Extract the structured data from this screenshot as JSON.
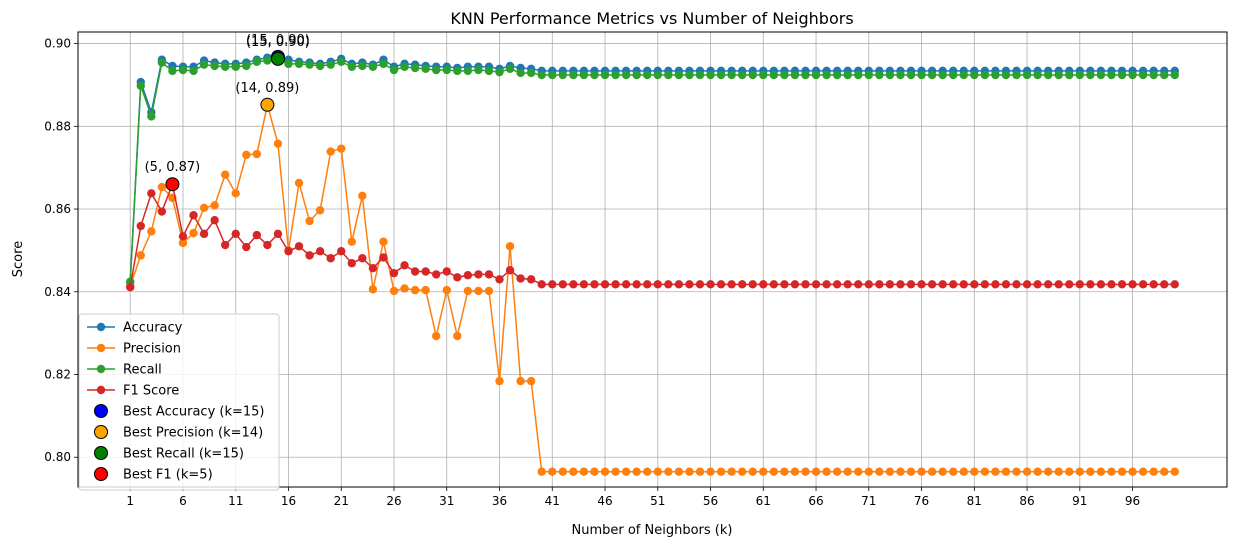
{
  "chart_data": {
    "type": "line",
    "title": "KNN Performance Metrics vs Number of Neighbors",
    "xlabel": "Number of Neighbors (k)",
    "ylabel": "Score",
    "xlim": [
      -3.95,
      104.95
    ],
    "ylim": [
      0.7928,
      0.9028
    ],
    "xticks": [
      1,
      6,
      11,
      16,
      21,
      26,
      31,
      36,
      41,
      46,
      51,
      56,
      61,
      66,
      71,
      76,
      81,
      86,
      91,
      96
    ],
    "yticks": [
      0.8,
      0.82,
      0.84,
      0.86,
      0.88,
      0.9
    ],
    "ytick_labels": [
      "0.80",
      "0.82",
      "0.84",
      "0.86",
      "0.88",
      "0.90"
    ],
    "grid": true,
    "legend_position": "lower left",
    "x": [
      1,
      2,
      3,
      4,
      5,
      6,
      7,
      8,
      9,
      10,
      11,
      12,
      13,
      14,
      15,
      16,
      17,
      18,
      19,
      20,
      21,
      22,
      23,
      24,
      25,
      26,
      27,
      28,
      29,
      30,
      31,
      32,
      33,
      34,
      35,
      36,
      37,
      38,
      39,
      40,
      41,
      42,
      43,
      44,
      45,
      46,
      47,
      48,
      49,
      50,
      51,
      52,
      53,
      54,
      55,
      56,
      57,
      58,
      59,
      60,
      61,
      62,
      63,
      64,
      65,
      66,
      67,
      68,
      69,
      70,
      71,
      72,
      73,
      74,
      75,
      76,
      77,
      78,
      79,
      80,
      81,
      82,
      83,
      84,
      85,
      86,
      87,
      88,
      89,
      90,
      91,
      92,
      93,
      94,
      95,
      96,
      97,
      98,
      99,
      100
    ],
    "series": [
      {
        "name": "Accuracy",
        "color": "#1f77b4",
        "values": [
          0.8424,
          0.8907,
          0.8834,
          0.8961,
          0.8946,
          0.8944,
          0.8944,
          0.8959,
          0.8954,
          0.8951,
          0.8951,
          0.8954,
          0.8961,
          0.8966,
          0.8968,
          0.8961,
          0.8956,
          0.8954,
          0.8951,
          0.8956,
          0.8963,
          0.8951,
          0.8954,
          0.8949,
          0.8961,
          0.8944,
          0.8951,
          0.8949,
          0.8946,
          0.8944,
          0.8944,
          0.8941,
          0.8944,
          0.8944,
          0.8944,
          0.8939,
          0.8946,
          0.8941,
          0.8939,
          0.8934,
          0.8934,
          0.8934,
          0.8934,
          0.8934,
          0.8934,
          0.8934,
          0.8934,
          0.8934,
          0.8934,
          0.8934,
          0.8934,
          0.8934,
          0.8934,
          0.8934,
          0.8934,
          0.8934,
          0.8934,
          0.8934,
          0.8934,
          0.8934,
          0.8934,
          0.8934,
          0.8934,
          0.8934,
          0.8934,
          0.8934,
          0.8934,
          0.8934,
          0.8934,
          0.8934,
          0.8934,
          0.8934,
          0.8934,
          0.8934,
          0.8934,
          0.8934,
          0.8934,
          0.8934,
          0.8934,
          0.8934,
          0.8934,
          0.8934,
          0.8934,
          0.8934,
          0.8934,
          0.8934,
          0.8934,
          0.8934,
          0.8934,
          0.8934,
          0.8934,
          0.8934,
          0.8934,
          0.8934,
          0.8934,
          0.8934,
          0.8934,
          0.8934,
          0.8934,
          0.8934
        ]
      },
      {
        "name": "Precision",
        "color": "#ff7f0e",
        "values": [
          0.8414,
          0.8488,
          0.8546,
          0.8653,
          0.8627,
          0.8518,
          0.8542,
          0.8603,
          0.8609,
          0.8683,
          0.8638,
          0.8731,
          0.8733,
          0.8852,
          0.8758,
          0.85,
          0.8663,
          0.8571,
          0.8597,
          0.8739,
          0.8746,
          0.8521,
          0.8632,
          0.8406,
          0.8521,
          0.8402,
          0.8408,
          0.8404,
          0.8404,
          0.8293,
          0.8404,
          0.8293,
          0.8402,
          0.8402,
          0.8402,
          0.8184,
          0.851,
          0.8184,
          0.8184,
          0.7965,
          0.7965,
          0.7965,
          0.7965,
          0.7965,
          0.7965,
          0.7965,
          0.7965,
          0.7965,
          0.7965,
          0.7965,
          0.7965,
          0.7965,
          0.7965,
          0.7965,
          0.7965,
          0.7965,
          0.7965,
          0.7965,
          0.7965,
          0.7965,
          0.7965,
          0.7965,
          0.7965,
          0.7965,
          0.7965,
          0.7965,
          0.7965,
          0.7965,
          0.7965,
          0.7965,
          0.7965,
          0.7965,
          0.7965,
          0.7965,
          0.7965,
          0.7965,
          0.7965,
          0.7965,
          0.7965,
          0.7965,
          0.7965,
          0.7965,
          0.7965,
          0.7965,
          0.7965,
          0.7965,
          0.7965,
          0.7965,
          0.7965,
          0.7965,
          0.7965,
          0.7965,
          0.7965,
          0.7965,
          0.7965,
          0.7965,
          0.7965,
          0.7965,
          0.7965,
          0.7965
        ]
      },
      {
        "name": "Recall",
        "color": "#2ca02c",
        "values": [
          0.8424,
          0.8898,
          0.8824,
          0.8954,
          0.8934,
          0.8936,
          0.8934,
          0.8949,
          0.8946,
          0.8944,
          0.8944,
          0.8946,
          0.8956,
          0.8959,
          0.8963,
          0.8951,
          0.8951,
          0.8949,
          0.8946,
          0.8949,
          0.8956,
          0.8944,
          0.8946,
          0.8944,
          0.8951,
          0.8936,
          0.8944,
          0.8941,
          0.8939,
          0.8936,
          0.8936,
          0.8934,
          0.8934,
          0.8936,
          0.8934,
          0.8931,
          0.8939,
          0.8929,
          0.8929,
          0.8924,
          0.8924,
          0.8924,
          0.8924,
          0.8924,
          0.8924,
          0.8924,
          0.8924,
          0.8924,
          0.8924,
          0.8924,
          0.8924,
          0.8924,
          0.8924,
          0.8924,
          0.8924,
          0.8924,
          0.8924,
          0.8924,
          0.8924,
          0.8924,
          0.8924,
          0.8924,
          0.8924,
          0.8924,
          0.8924,
          0.8924,
          0.8924,
          0.8924,
          0.8924,
          0.8924,
          0.8924,
          0.8924,
          0.8924,
          0.8924,
          0.8924,
          0.8924,
          0.8924,
          0.8924,
          0.8924,
          0.8924,
          0.8924,
          0.8924,
          0.8924,
          0.8924,
          0.8924,
          0.8924,
          0.8924,
          0.8924,
          0.8924,
          0.8924,
          0.8924,
          0.8924,
          0.8924,
          0.8924,
          0.8924,
          0.8924,
          0.8924,
          0.8924,
          0.8924,
          0.8924
        ]
      },
      {
        "name": "F1 Score",
        "color": "#d62728",
        "values": [
          0.8411,
          0.8559,
          0.8638,
          0.8594,
          0.866,
          0.8534,
          0.8585,
          0.854,
          0.8573,
          0.8513,
          0.854,
          0.8508,
          0.8537,
          0.8513,
          0.854,
          0.8498,
          0.851,
          0.8488,
          0.8498,
          0.8481,
          0.8498,
          0.8469,
          0.8481,
          0.8457,
          0.8483,
          0.8445,
          0.8464,
          0.8449,
          0.8449,
          0.8442,
          0.8449,
          0.8435,
          0.844,
          0.8442,
          0.8442,
          0.843,
          0.8452,
          0.8432,
          0.843,
          0.8418,
          0.8418,
          0.8418,
          0.8418,
          0.8418,
          0.8418,
          0.8418,
          0.8418,
          0.8418,
          0.8418,
          0.8418,
          0.8418,
          0.8418,
          0.8418,
          0.8418,
          0.8418,
          0.8418,
          0.8418,
          0.8418,
          0.8418,
          0.8418,
          0.8418,
          0.8418,
          0.8418,
          0.8418,
          0.8418,
          0.8418,
          0.8418,
          0.8418,
          0.8418,
          0.8418,
          0.8418,
          0.8418,
          0.8418,
          0.8418,
          0.8418,
          0.8418,
          0.8418,
          0.8418,
          0.8418,
          0.8418,
          0.8418,
          0.8418,
          0.8418,
          0.8418,
          0.8418,
          0.8418,
          0.8418,
          0.8418,
          0.8418,
          0.8418,
          0.8418,
          0.8418,
          0.8418,
          0.8418,
          0.8418,
          0.8418,
          0.8418,
          0.8418,
          0.8418,
          0.8418
        ]
      }
    ],
    "best_points": [
      {
        "name": "Best Accuracy (k=15)",
        "color": "#0000ff",
        "x": 15,
        "y": 0.8968,
        "annotation": "(15, 0.90)"
      },
      {
        "name": "Best Precision (k=14)",
        "color": "#ffa500",
        "x": 14,
        "y": 0.8852,
        "annotation": "(14, 0.89)"
      },
      {
        "name": "Best Recall (k=15)",
        "color": "#008000",
        "x": 15,
        "y": 0.8963,
        "annotation": "(15, 0.90)"
      },
      {
        "name": "Best F1 (k=5)",
        "color": "#ff0000",
        "x": 5,
        "y": 0.866,
        "annotation": "(5, 0.87)"
      }
    ]
  }
}
